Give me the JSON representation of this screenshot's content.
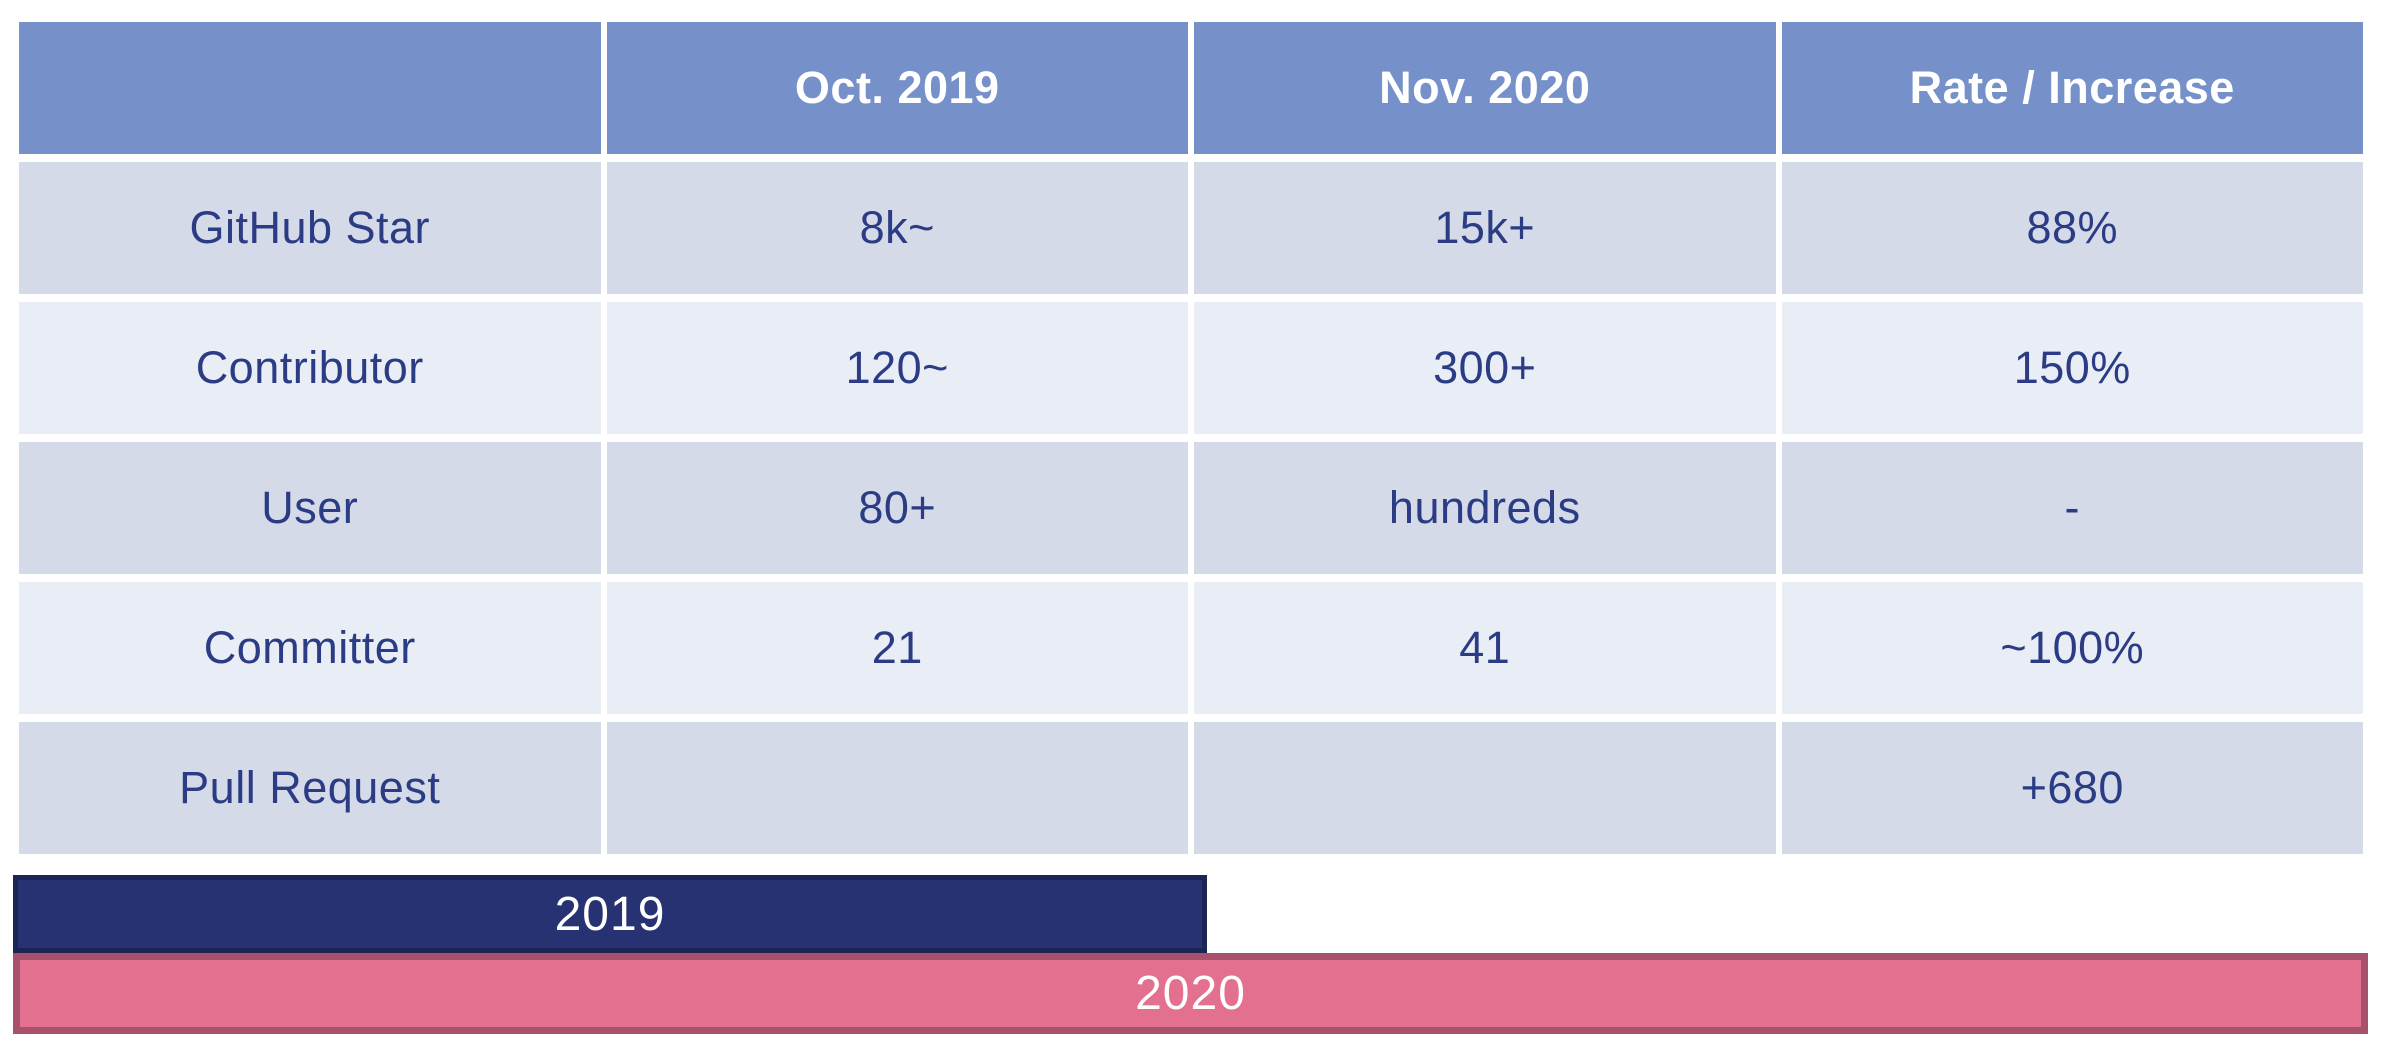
{
  "table": {
    "headers": [
      "",
      "Oct. 2019",
      "Nov. 2020",
      "Rate / Increase"
    ],
    "rows": [
      {
        "cells": [
          "GitHub Star",
          "8k~",
          "15k+",
          "88%"
        ]
      },
      {
        "cells": [
          "Contributor",
          "120~",
          "300+",
          "150%"
        ]
      },
      {
        "cells": [
          "User",
          "80+",
          "hundreds",
          "-"
        ]
      },
      {
        "cells": [
          "Committer",
          "21",
          "41",
          "~100%"
        ]
      },
      {
        "cells": [
          "Pull Request",
          "",
          "",
          "+680"
        ]
      }
    ]
  },
  "bars": {
    "bar_2019": {
      "label": "2019",
      "fill": "#263272",
      "border": "#1B2454",
      "width_pct": 50.0
    },
    "bar_2020": {
      "label": "2020",
      "fill": "#E2708E",
      "border": "#A8516C",
      "width_pct": 98.5
    }
  },
  "colors": {
    "header_bg": "#7690C9",
    "header_text": "#FFFFFF",
    "row_odd_bg": "#D5DAE9",
    "row_even_bg": "#E9EDF6",
    "cell_text": "#2B3C84",
    "background": "#FFFFFF"
  },
  "chart_data": [
    {
      "type": "table",
      "columns": [
        "",
        "Oct. 2019",
        "Nov. 2020",
        "Rate / Increase"
      ],
      "rows": [
        [
          "GitHub Star",
          "8k~",
          "15k+",
          "88%"
        ],
        [
          "Contributor",
          "120~",
          "300+",
          "150%"
        ],
        [
          "User",
          "80+",
          "hundreds",
          "-"
        ],
        [
          "Committer",
          "21",
          "41",
          "~100%"
        ],
        [
          "Pull Request",
          "",
          "",
          "+680"
        ]
      ]
    },
    {
      "type": "bar",
      "categories": [
        "2019",
        "2020"
      ],
      "values": [
        50.0,
        98.5
      ],
      "title": "",
      "xlabel": "",
      "ylabel": "",
      "note": "horizontal timeline bars; values are bar widths as percent of slide width"
    }
  ]
}
